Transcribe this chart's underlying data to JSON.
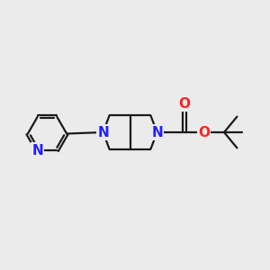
{
  "bg_color": "#ebebeb",
  "bond_color": "#1a1a1a",
  "N_color": "#2020ff",
  "O_color": "#ff2020",
  "bond_width": 1.6,
  "dbo": 0.055,
  "font_size_atom": 11,
  "fig_size": [
    3.0,
    3.0
  ],
  "dpi": 100,
  "xlim": [
    0,
    10
  ],
  "ylim": [
    0,
    10
  ]
}
